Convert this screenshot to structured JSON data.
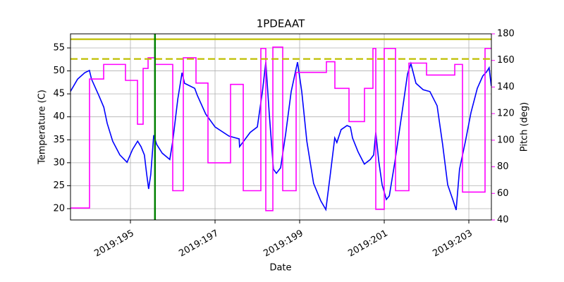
{
  "chart_data": {
    "type": "line",
    "title": "1PDEAAT",
    "x_label": "Date",
    "y_label": "Temperature (C)",
    "y2_label": "Pitch (deg)",
    "y2_color": "#ff00ff",
    "xlim": [
      193.583,
      203.533
    ],
    "ylim": [
      17.54,
      58.07
    ],
    "y2lim": [
      40,
      180
    ],
    "xticks": [
      {
        "value": 195,
        "label": "2019:195"
      },
      {
        "value": 197,
        "label": "2019:197"
      },
      {
        "value": 199,
        "label": "2019:199"
      },
      {
        "value": 201,
        "label": "2019:201"
      },
      {
        "value": 203,
        "label": "2019:203"
      }
    ],
    "yticks": [
      20,
      25,
      30,
      35,
      40,
      45,
      50,
      55
    ],
    "y2ticks": [
      40,
      60,
      80,
      100,
      120,
      140,
      160,
      180
    ],
    "grid": true,
    "hlines": [
      {
        "value": 56.9,
        "color": "#bfbf00",
        "style": "solid"
      },
      {
        "value": 52.6,
        "color": "#bfbf00",
        "style": "dashed"
      }
    ],
    "vlines": [
      {
        "value": 195.58,
        "color": "#008000",
        "style": "solid"
      }
    ],
    "series": [
      {
        "name": "Temperature",
        "color": "#0000ff",
        "axis": "y",
        "x": [
          193.58,
          193.75,
          193.92,
          194.03,
          194.08,
          194.25,
          194.37,
          194.45,
          194.58,
          194.75,
          194.92,
          195.05,
          195.17,
          195.25,
          195.33,
          195.38,
          195.43,
          195.48,
          195.55,
          195.62,
          195.75,
          195.93,
          196.0,
          196.12,
          196.22,
          196.28,
          196.52,
          196.58,
          196.78,
          197.0,
          197.33,
          197.57,
          197.58,
          197.83,
          198.0,
          198.12,
          198.2,
          198.28,
          198.38,
          198.45,
          198.55,
          198.67,
          198.8,
          198.95,
          199.05,
          199.17,
          199.33,
          199.5,
          199.62,
          199.72,
          199.83,
          199.88,
          199.98,
          200.12,
          200.2,
          200.25,
          200.38,
          200.53,
          200.67,
          200.75,
          200.8,
          200.87,
          200.95,
          201.05,
          201.12,
          201.25,
          201.42,
          201.55,
          201.63,
          201.75,
          201.92,
          202.08,
          202.25,
          202.38,
          202.5,
          202.62,
          202.7,
          202.78,
          202.92,
          203.05,
          203.2,
          203.33,
          203.42,
          203.48,
          203.53
        ],
        "values": [
          45.5,
          48.2,
          49.6,
          50.1,
          48.2,
          44.7,
          42.1,
          38.6,
          34.7,
          31.7,
          30.1,
          32.9,
          34.7,
          33.5,
          31.7,
          27.8,
          24.3,
          27.4,
          36.0,
          34.0,
          32.1,
          30.7,
          34.7,
          43.9,
          49.6,
          47.3,
          46.2,
          44.7,
          40.6,
          37.8,
          35.8,
          35.2,
          33.5,
          36.6,
          37.8,
          45.5,
          51.9,
          40.9,
          28.6,
          27.7,
          28.9,
          36.3,
          45.5,
          51.9,
          45.5,
          34.7,
          25.5,
          21.7,
          19.8,
          27.1,
          35.4,
          34.4,
          37.2,
          38.1,
          37.8,
          35.4,
          32.4,
          29.7,
          30.7,
          31.7,
          36.6,
          30.4,
          25.2,
          22.0,
          22.8,
          30.1,
          40.9,
          49.3,
          51.6,
          47.3,
          45.9,
          45.5,
          42.4,
          34.0,
          25.2,
          22.0,
          19.7,
          28.6,
          34.7,
          40.9,
          46.2,
          48.9,
          49.8,
          50.7,
          46.7
        ]
      },
      {
        "name": "Pitch",
        "color": "#ff00ff",
        "axis": "y2",
        "x": [
          193.583,
          194.033,
          194.033,
          194.367,
          194.367,
          194.883,
          194.883,
          195.167,
          195.167,
          195.3,
          195.3,
          195.417,
          195.417,
          195.583,
          195.583,
          196.0,
          196.0,
          196.25,
          196.25,
          196.55,
          196.55,
          196.833,
          196.833,
          197.367,
          197.367,
          197.667,
          197.667,
          198.083,
          198.083,
          198.2,
          198.2,
          198.367,
          198.367,
          198.6,
          198.6,
          198.917,
          198.917,
          199.633,
          199.633,
          199.833,
          199.833,
          200.167,
          200.167,
          200.533,
          200.533,
          200.733,
          200.733,
          200.8,
          200.8,
          201.0,
          201.0,
          201.267,
          201.267,
          201.583,
          201.583,
          202.0,
          202.0,
          202.667,
          202.667,
          202.85,
          202.85,
          203.383,
          203.383,
          203.533
        ],
        "values": [
          49,
          49,
          146,
          146,
          157,
          157,
          145,
          145,
          112,
          112,
          154,
          154,
          162,
          162,
          157,
          157,
          62,
          62,
          162,
          162,
          143,
          143,
          83,
          83,
          142,
          142,
          62,
          62,
          169,
          169,
          47,
          47,
          170,
          170,
          62,
          62,
          151,
          151,
          159,
          159,
          139,
          139,
          114,
          114,
          139,
          139,
          169,
          169,
          48,
          48,
          169,
          169,
          62,
          62,
          158,
          158,
          149,
          149,
          157,
          157,
          61,
          61,
          169,
          169
        ]
      }
    ]
  }
}
